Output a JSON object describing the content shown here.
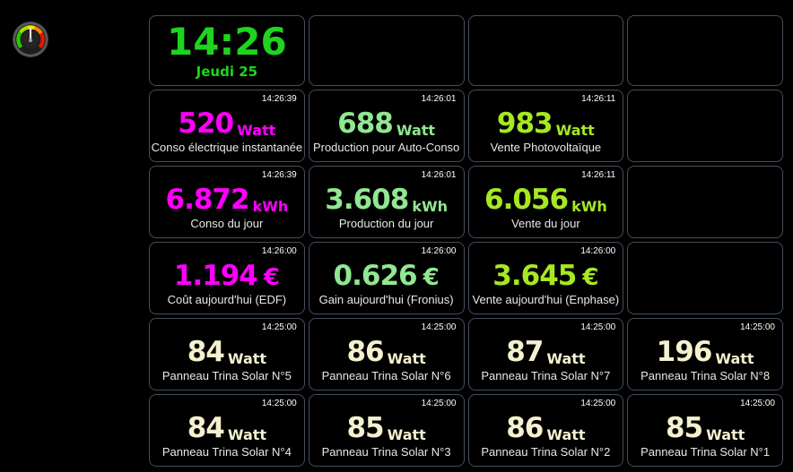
{
  "page": {
    "background": "#000000",
    "tile_border": "#454e5b"
  },
  "colors": {
    "magenta": "#ff00ff",
    "soft_green": "#90e890",
    "green_yellow": "#a6e822",
    "cream": "#f5f0ce",
    "clock_green": "#1ed41e",
    "label": "#e8e8e8",
    "timestamp": "#ffffff"
  },
  "gauge_icon": {
    "name": "gauge-icon",
    "arc_colors": [
      "#22cc00",
      "#aadd00",
      "#ffdd00",
      "#ff8800",
      "#ee1100"
    ],
    "needle_color": "#ffffff"
  },
  "clock": {
    "time": "14:26",
    "date": "Jeudi 25"
  },
  "tiles": [
    {
      "type": "clock"
    },
    {
      "type": "empty"
    },
    {
      "type": "empty"
    },
    {
      "type": "empty"
    },
    {
      "type": "value",
      "timestamp": "14:26:39",
      "value": "520",
      "unit": "Watt",
      "unit_size": "sub",
      "label": "Conso électrique instantanée",
      "color": "magenta"
    },
    {
      "type": "value",
      "timestamp": "14:26:01",
      "value": "688",
      "unit": "Watt",
      "unit_size": "sub",
      "label": "Production pour Auto-Conso",
      "color": "soft_green"
    },
    {
      "type": "value",
      "timestamp": "14:26:11",
      "value": "983",
      "unit": "Watt",
      "unit_size": "sub",
      "label": "Vente Photovoltaïque",
      "color": "green_yellow"
    },
    {
      "type": "empty"
    },
    {
      "type": "value",
      "timestamp": "14:26:39",
      "value": "6.872",
      "unit": "kWh",
      "unit_size": "sub",
      "label": "Conso du jour",
      "color": "magenta"
    },
    {
      "type": "value",
      "timestamp": "14:26:01",
      "value": "3.608",
      "unit": "kWh",
      "unit_size": "sub",
      "label": "Production du jour",
      "color": "soft_green"
    },
    {
      "type": "value",
      "timestamp": "14:26:11",
      "value": "6.056",
      "unit": "kWh",
      "unit_size": "sub",
      "label": "Vente du jour",
      "color": "green_yellow"
    },
    {
      "type": "empty"
    },
    {
      "type": "value",
      "timestamp": "14:26:00",
      "value": "1.194",
      "unit": "€",
      "unit_size": "big",
      "label": "Coût aujourd'hui (EDF)",
      "color": "magenta"
    },
    {
      "type": "value",
      "timestamp": "14:26:00",
      "value": "0.626",
      "unit": "€",
      "unit_size": "big",
      "label": "Gain aujourd'hui (Fronius)",
      "color": "soft_green"
    },
    {
      "type": "value",
      "timestamp": "14:26:00",
      "value": "3.645",
      "unit": "€",
      "unit_size": "big",
      "label": "Vente aujourd'hui (Enphase)",
      "color": "green_yellow"
    },
    {
      "type": "empty"
    },
    {
      "type": "value",
      "timestamp": "14:25:00",
      "value": "84",
      "unit": "Watt",
      "unit_size": "sub",
      "label": "Panneau Trina Solar N°5",
      "color": "cream"
    },
    {
      "type": "value",
      "timestamp": "14:25:00",
      "value": "86",
      "unit": "Watt",
      "unit_size": "sub",
      "label": "Panneau Trina Solar N°6",
      "color": "cream"
    },
    {
      "type": "value",
      "timestamp": "14:25:00",
      "value": "87",
      "unit": "Watt",
      "unit_size": "sub",
      "label": "Panneau Trina Solar N°7",
      "color": "cream"
    },
    {
      "type": "value",
      "timestamp": "14:25:00",
      "value": "196",
      "unit": "Watt",
      "unit_size": "sub",
      "label": "Panneau Trina Solar N°8",
      "color": "cream"
    },
    {
      "type": "value",
      "timestamp": "14:25:00",
      "value": "84",
      "unit": "Watt",
      "unit_size": "sub",
      "label": "Panneau Trina Solar N°4",
      "color": "cream"
    },
    {
      "type": "value",
      "timestamp": "14:25:00",
      "value": "85",
      "unit": "Watt",
      "unit_size": "sub",
      "label": "Panneau Trina Solar N°3",
      "color": "cream"
    },
    {
      "type": "value",
      "timestamp": "14:25:00",
      "value": "86",
      "unit": "Watt",
      "unit_size": "sub",
      "label": "Panneau Trina Solar N°2",
      "color": "cream"
    },
    {
      "type": "value",
      "timestamp": "14:25:00",
      "value": "85",
      "unit": "Watt",
      "unit_size": "sub",
      "label": "Panneau Trina Solar N°1",
      "color": "cream"
    }
  ]
}
